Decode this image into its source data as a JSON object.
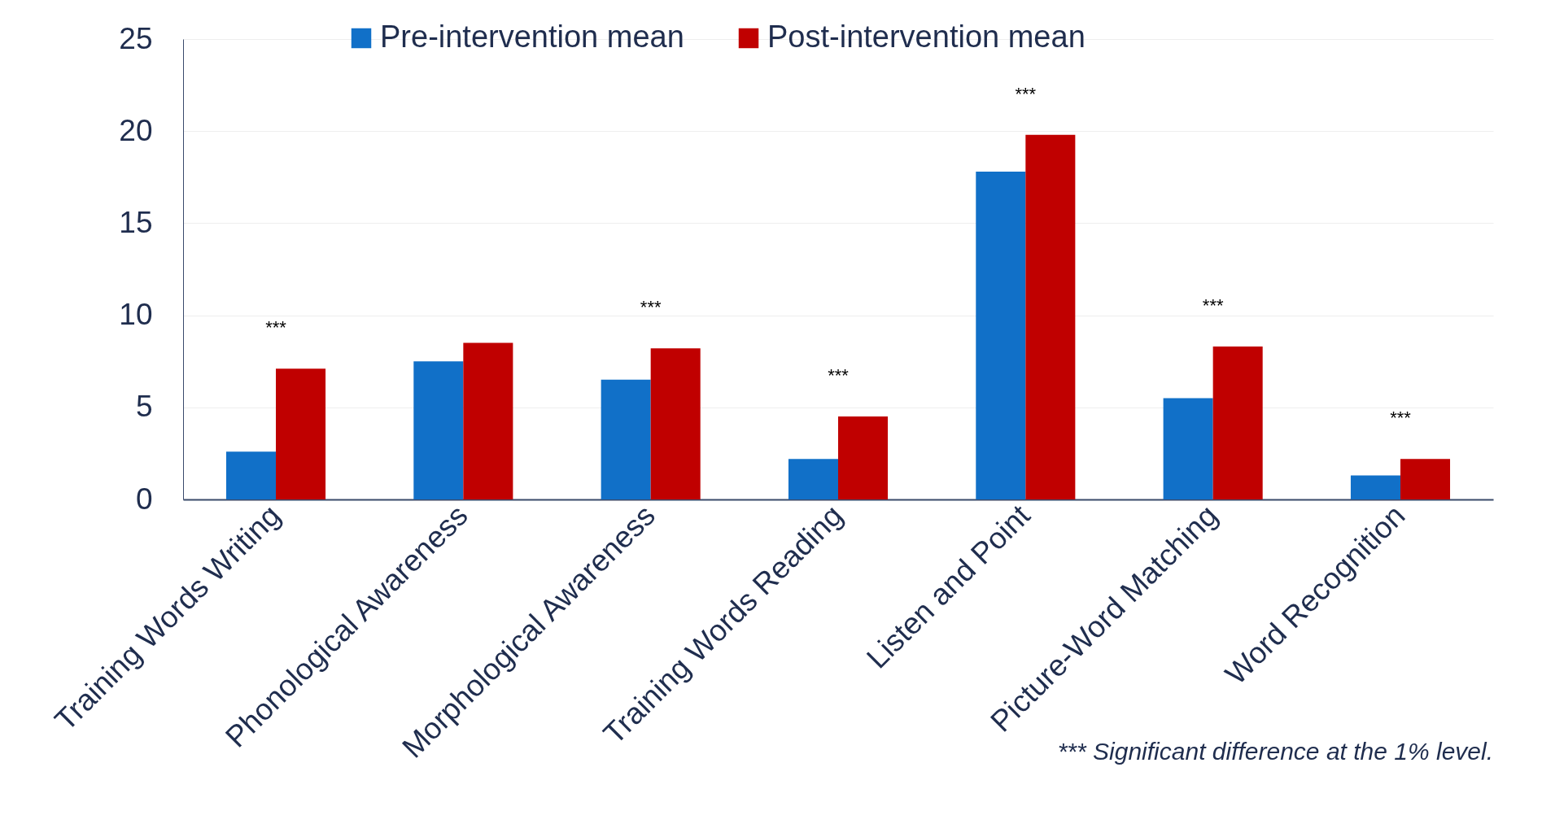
{
  "chart_data": {
    "type": "bar",
    "categories": [
      "Training Words Writing",
      "Phonological Awareness",
      "Morphological Awareness",
      "Training Words Reading",
      "Listen and Point",
      "Picture-Word Matching",
      "Word Recognition"
    ],
    "series": [
      {
        "name": "Pre-intervention mean",
        "color": "#1170c8",
        "values": [
          2.6,
          7.5,
          6.5,
          2.2,
          17.8,
          5.5,
          1.3
        ]
      },
      {
        "name": "Post-intervention mean",
        "color": "#c00000",
        "values": [
          7.1,
          8.5,
          8.2,
          4.5,
          19.8,
          8.3,
          2.2
        ]
      }
    ],
    "ylim": [
      0,
      25
    ],
    "yticks": [
      0,
      5,
      10,
      15,
      20,
      25
    ],
    "grid": "y",
    "legend": "top",
    "annotations": [
      {
        "text": "***",
        "x": "Training Words Writing",
        "y": 7.1
      },
      {
        "text": "***",
        "x": "Morphological Awareness",
        "y": 8.2
      },
      {
        "text": "***",
        "x": "Training Words Reading",
        "y": 4.5
      },
      {
        "text": "***",
        "x": "Listen and Point",
        "y": 19.8
      },
      {
        "text": "***",
        "x": "Picture-Word Matching",
        "y": 8.3
      },
      {
        "text": "***",
        "x": "Word Recognition",
        "y": 2.2
      },
      "*** Significant difference at the 1% level."
    ]
  }
}
